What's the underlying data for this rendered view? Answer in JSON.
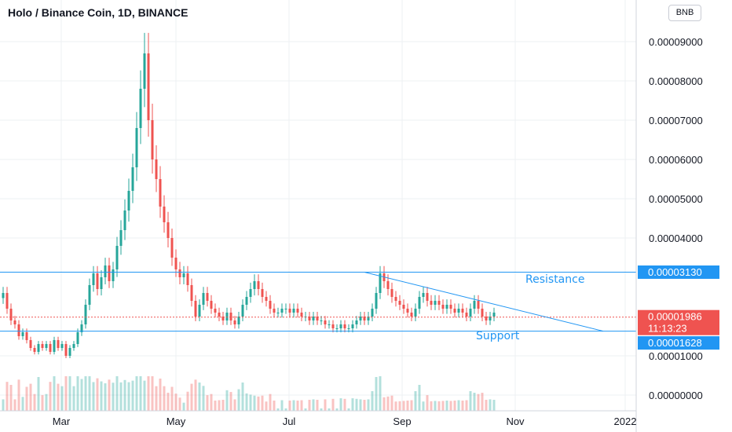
{
  "header": {
    "title": "Holo / Binance Coin, 1D, BINANCE",
    "currency_badge": "BNB"
  },
  "colors": {
    "up": "#26a69a",
    "down": "#ef5350",
    "support_resistance": "#2196f3",
    "price_line": "#ef5350",
    "grid": "#eef0f3"
  },
  "chart_data": {
    "type": "candlestick",
    "y_axis_labels": [
      "0.00009000",
      "0.00008000",
      "0.00007000",
      "0.00006000",
      "0.00005000",
      "0.00004000",
      "0.00001000",
      "0.00000000"
    ],
    "y_axis_values": [
      9e-05,
      8e-05,
      7e-05,
      6e-05,
      5e-05,
      4e-05,
      1e-05,
      0.0
    ],
    "x_axis_labels": [
      "Mar",
      "May",
      "Jul",
      "Sep",
      "Nov",
      "2022"
    ],
    "ylim": [
      0.0,
      9e-05
    ],
    "grid": true,
    "levels": {
      "resistance": {
        "label": "Resistance",
        "value": 3.13e-05,
        "tag": "0.00003130"
      },
      "support": {
        "label": "Support",
        "value": 1.628e-05,
        "tag": "0.00001628"
      },
      "last_price": {
        "value": 1.986e-05,
        "tag": "0.00001986",
        "countdown": "11:13:23"
      }
    },
    "trendline": {
      "from": {
        "month": "Aug",
        "value": 3.13e-05
      },
      "to": {
        "month": "Dec",
        "value": 1.63e-05
      }
    },
    "closes": [
      2.6e-05,
      2.2e-05,
      1.9e-05,
      1.8e-05,
      1.5e-05,
      1.6e-05,
      1.4e-05,
      1.2e-05,
      1.1e-05,
      1.3e-05,
      1.2e-05,
      1.3e-05,
      1.1e-05,
      1.4e-05,
      1.2e-05,
      1.3e-05,
      1e-05,
      1.2e-05,
      1.3e-05,
      1.6e-05,
      1.8e-05,
      2.3e-05,
      2.8e-05,
      3.1e-05,
      2.7e-05,
      3e-05,
      3.3e-05,
      2.9e-05,
      3.2e-05,
      3.8e-05,
      4.2e-05,
      4.7e-05,
      5.2e-05,
      5.8e-05,
      6.8e-05,
      7.8e-05,
      8.7e-05,
      7e-05,
      6e-05,
      5.5e-05,
      4.8e-05,
      4.4e-05,
      4e-05,
      3.5e-05,
      3.2e-05,
      3e-05,
      3.1e-05,
      2.8e-05,
      2.4e-05,
      2e-05,
      2.3e-05,
      2.6e-05,
      2.4e-05,
      2.2e-05,
      2.1e-05,
      2e-05,
      1.9e-05,
      2.1e-05,
      1.9e-05,
      1.8e-05,
      2e-05,
      2.3e-05,
      2.5e-05,
      2.7e-05,
      2.9e-05,
      2.7e-05,
      2.5e-05,
      2.4e-05,
      2.2e-05,
      2.1e-05,
      2.1e-05,
      2.2e-05,
      2.2e-05,
      2.1e-05,
      2.2e-05,
      2.1e-05,
      2e-05,
      2e-05,
      1.9e-05,
      2e-05,
      1.9e-05,
      1.9e-05,
      1.8e-05,
      1.8e-05,
      1.7e-05,
      1.7e-05,
      1.8e-05,
      1.7e-05,
      1.7e-05,
      1.8e-05,
      1.9e-05,
      2e-05,
      1.9e-05,
      2e-05,
      2.2e-05,
      2.6e-05,
      3.1e-05,
      2.9e-05,
      2.7e-05,
      2.5e-05,
      2.4e-05,
      2.3e-05,
      2.2e-05,
      2.1e-05,
      2e-05,
      2.2e-05,
      2.5e-05,
      2.6e-05,
      2.4e-05,
      2.3e-05,
      2.4e-05,
      2.3e-05,
      2.2e-05,
      2.3e-05,
      2.2e-05,
      2.1e-05,
      2.2e-05,
      2.1e-05,
      2e-05,
      2.2e-05,
      2.4e-05,
      2.2e-05,
      2e-05,
      1.9e-05,
      2e-05,
      2.1e-05
    ]
  }
}
